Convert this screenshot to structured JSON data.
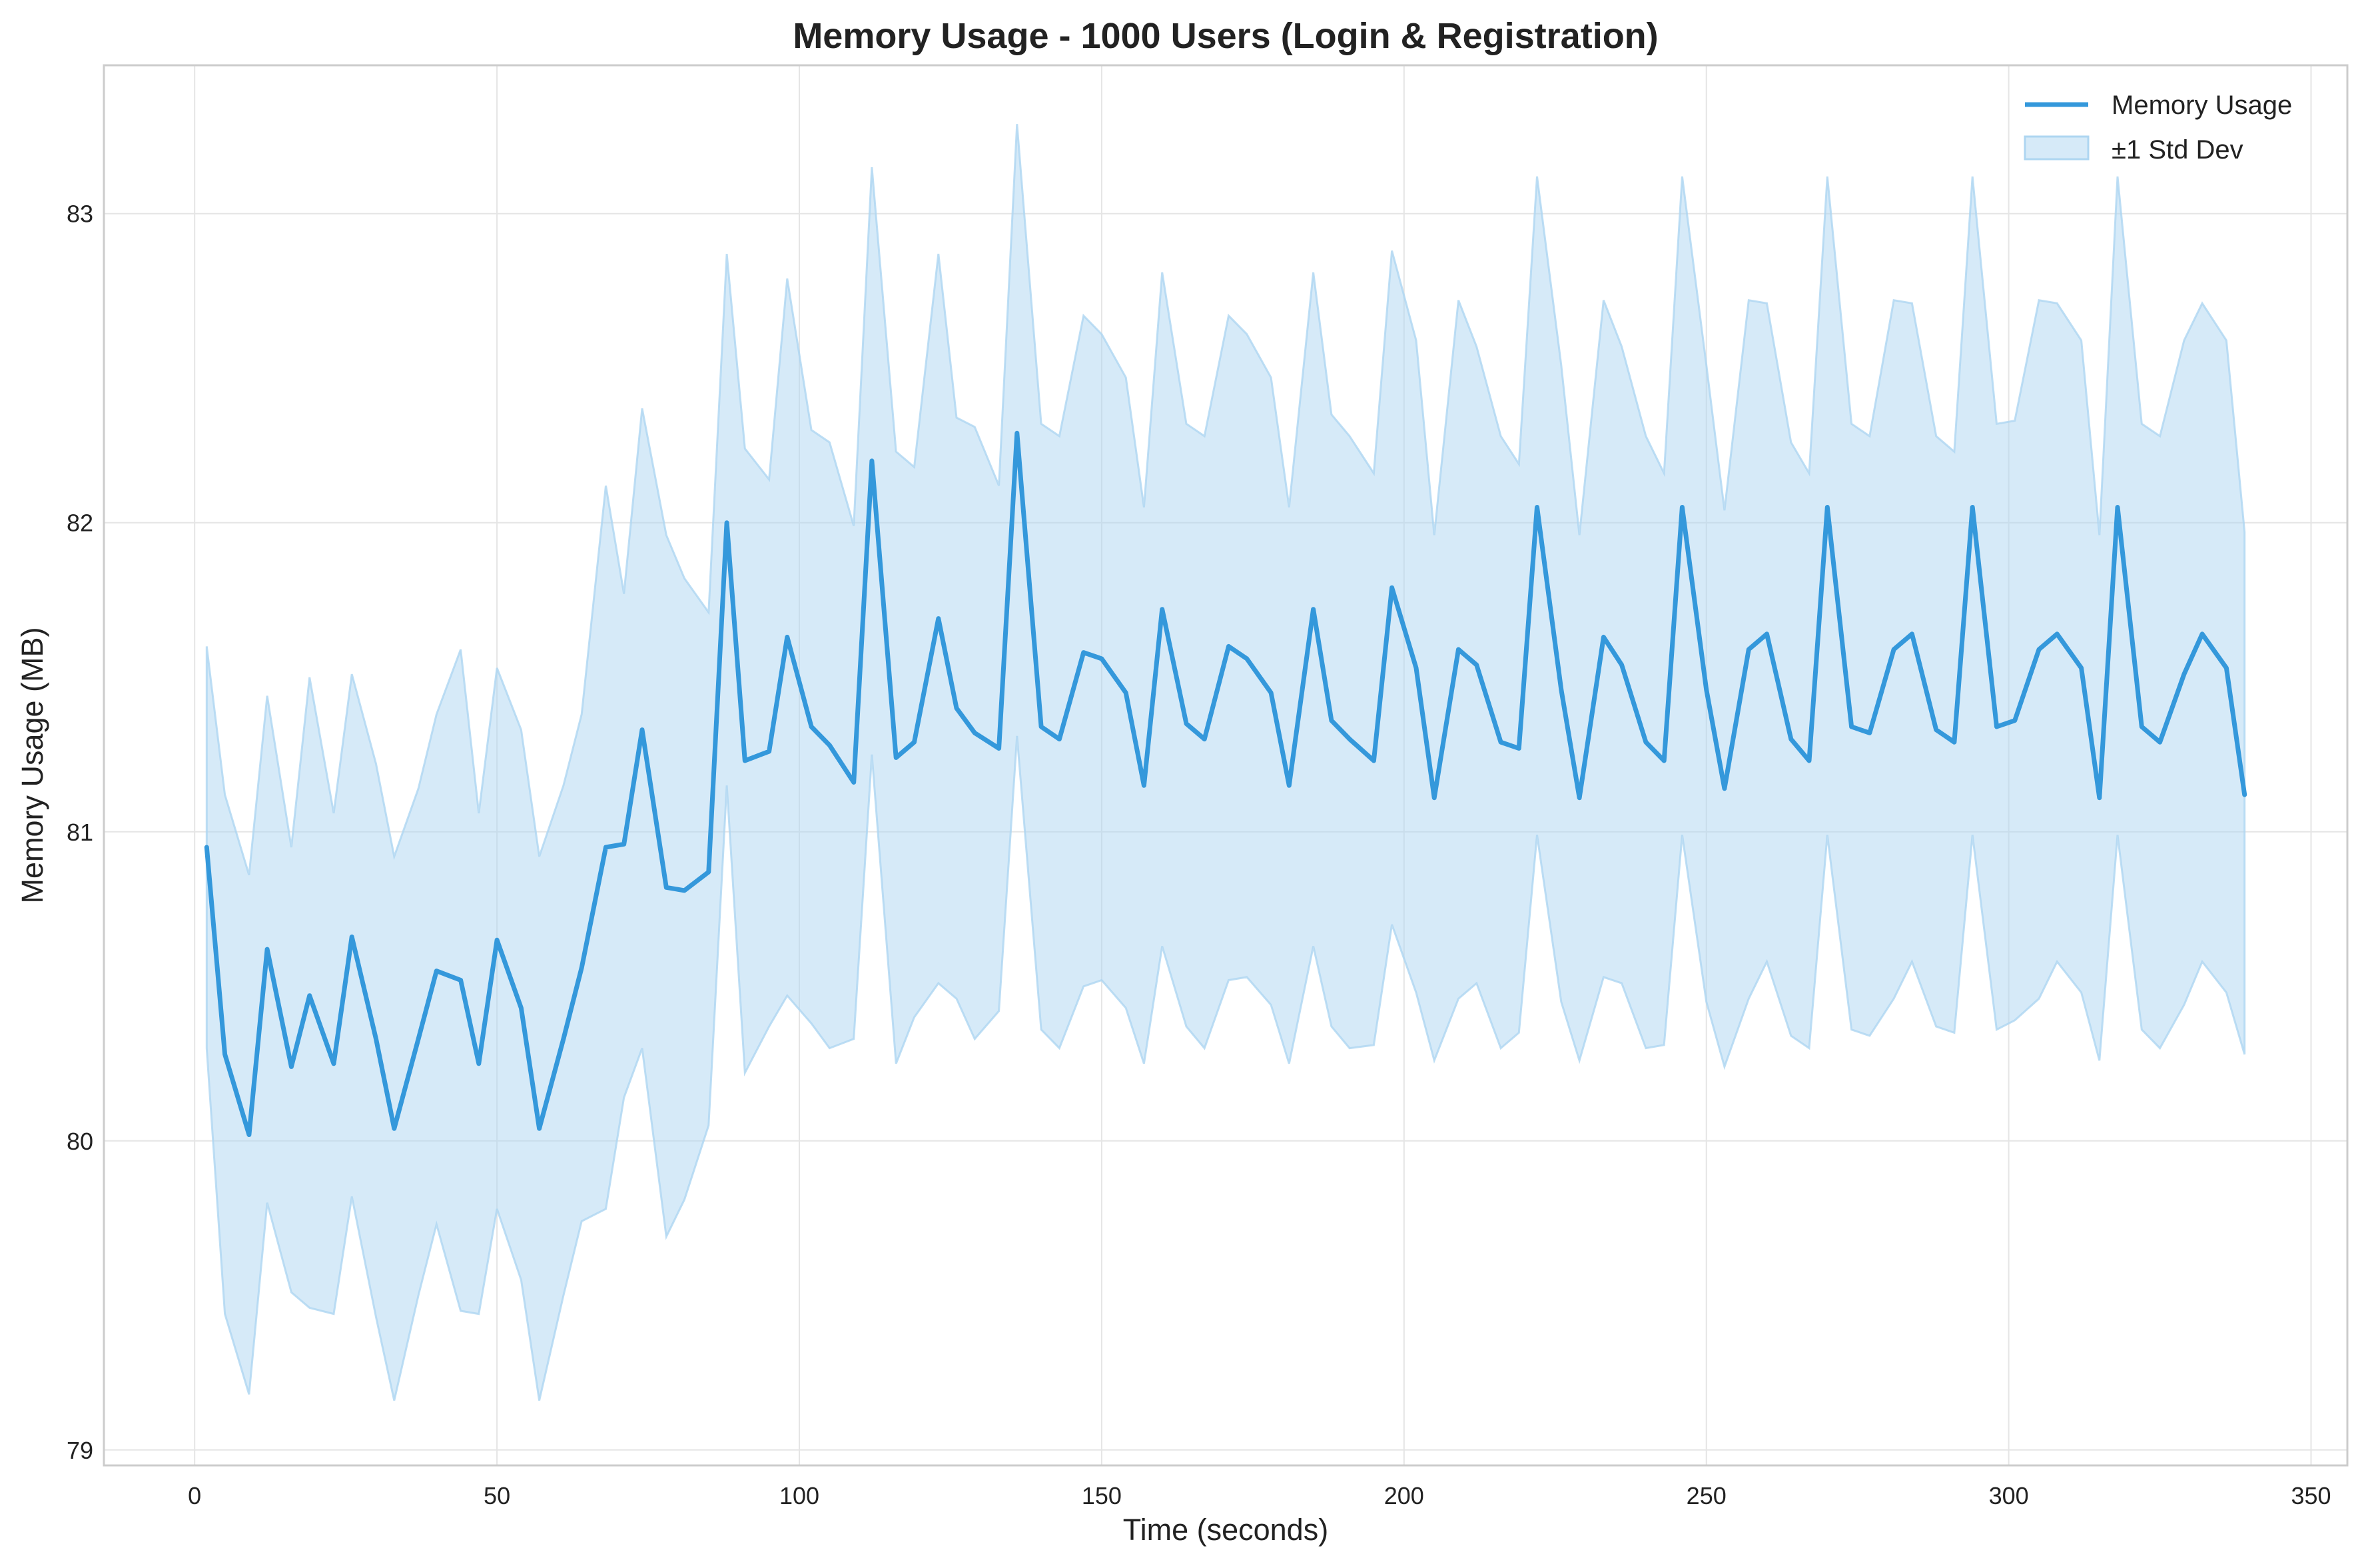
{
  "chart_data": {
    "type": "line",
    "title": "Memory Usage - 1000 Users (Login & Registration)",
    "xlabel": "Time (seconds)",
    "ylabel": "Memory Usage (MB)",
    "xlim": [
      -15,
      356
    ],
    "ylim": [
      78.95,
      83.48
    ],
    "xticks": [
      "0",
      "50",
      "100",
      "150",
      "200",
      "250",
      "300",
      "350"
    ],
    "yticks": [
      "79",
      "80",
      "81",
      "82",
      "83"
    ],
    "grid": true,
    "legend_position": "top-right",
    "colors": {
      "line": "#3498db",
      "band": "#aed6f1"
    },
    "series": [
      {
        "name": "Memory Usage",
        "legend_label": "Memory Usage",
        "x": [
          2,
          5,
          9,
          12,
          16,
          19,
          23,
          26,
          30,
          33,
          37,
          40,
          44,
          47,
          50,
          54,
          57,
          61,
          64,
          68,
          71,
          74,
          78,
          81,
          85,
          88,
          91,
          95,
          98,
          102,
          105,
          109,
          112,
          116,
          119,
          123,
          126,
          129,
          133,
          136,
          140,
          143,
          147,
          150,
          154,
          157,
          160,
          164,
          167,
          171,
          174,
          178,
          181,
          185,
          188,
          191,
          195,
          198,
          202,
          205,
          209,
          212,
          216,
          219,
          222,
          226,
          229,
          233,
          236,
          240,
          243,
          246,
          250,
          253,
          257,
          260,
          264,
          267,
          270,
          274,
          277,
          281,
          284,
          288,
          291,
          294,
          298,
          301,
          305,
          308,
          312,
          315,
          318,
          322,
          325,
          329,
          332,
          336,
          339
        ],
        "y": [
          80.95,
          80.28,
          80.02,
          80.62,
          80.24,
          80.47,
          80.25,
          80.66,
          80.33,
          80.04,
          80.33,
          80.55,
          80.52,
          80.25,
          80.65,
          80.43,
          80.04,
          80.33,
          80.56,
          80.95,
          80.96,
          81.33,
          80.82,
          80.81,
          80.87,
          82.0,
          81.23,
          81.26,
          81.63,
          81.34,
          81.28,
          81.16,
          82.2,
          81.24,
          81.29,
          81.69,
          81.4,
          81.32,
          81.27,
          82.29,
          81.34,
          81.3,
          81.58,
          81.56,
          81.45,
          81.15,
          81.72,
          81.35,
          81.3,
          81.6,
          81.56,
          81.45,
          81.15,
          81.72,
          81.36,
          81.3,
          81.23,
          81.79,
          81.53,
          81.11,
          81.59,
          81.54,
          81.29,
          81.27,
          82.05,
          81.46,
          81.11,
          81.63,
          81.54,
          81.29,
          81.23,
          82.05,
          81.46,
          81.14,
          81.59,
          81.64,
          81.3,
          81.23,
          82.05,
          81.34,
          81.32,
          81.59,
          81.64,
          81.33,
          81.29,
          82.05,
          81.34,
          81.36,
          81.59,
          81.64,
          81.53,
          81.11,
          82.05,
          81.34,
          81.29,
          81.51,
          81.64,
          81.53,
          81.12
        ]
      },
      {
        "name": "±1 Std Dev",
        "legend_label": "±1 Std Dev",
        "upper": [
          81.6,
          81.12,
          80.86,
          81.44,
          80.95,
          81.5,
          81.06,
          81.51,
          81.22,
          80.92,
          81.14,
          81.38,
          81.59,
          81.06,
          81.53,
          81.33,
          80.92,
          81.15,
          81.38,
          82.12,
          81.77,
          82.37,
          81.96,
          81.82,
          81.71,
          82.87,
          82.24,
          82.14,
          82.79,
          82.3,
          82.26,
          81.99,
          83.15,
          82.23,
          82.18,
          82.87,
          82.34,
          82.31,
          82.12,
          83.29,
          82.32,
          82.28,
          82.67,
          82.61,
          82.47,
          82.05,
          82.81,
          82.32,
          82.28,
          82.67,
          82.61,
          82.47,
          82.05,
          82.81,
          82.35,
          82.28,
          82.16,
          82.88,
          82.59,
          81.96,
          82.72,
          82.57,
          82.28,
          82.19,
          83.12,
          82.51,
          81.96,
          82.72,
          82.57,
          82.28,
          82.16,
          83.12,
          82.51,
          82.04,
          82.72,
          82.71,
          82.26,
          82.16,
          83.12,
          82.32,
          82.28,
          82.72,
          82.71,
          82.28,
          82.23,
          83.12,
          82.32,
          82.33,
          82.72,
          82.71,
          82.59,
          81.96,
          83.12,
          82.32,
          82.28,
          82.59,
          82.71,
          82.59,
          81.97
        ],
        "lower": [
          80.3,
          79.44,
          79.18,
          79.8,
          79.51,
          79.46,
          79.44,
          79.82,
          79.43,
          79.16,
          79.5,
          79.73,
          79.45,
          79.44,
          79.78,
          79.55,
          79.16,
          79.5,
          79.74,
          79.78,
          80.14,
          80.3,
          79.69,
          79.81,
          80.05,
          81.15,
          80.22,
          80.37,
          80.47,
          80.38,
          80.3,
          80.33,
          81.25,
          80.25,
          80.4,
          80.51,
          80.46,
          80.33,
          80.42,
          81.31,
          80.36,
          80.3,
          80.5,
          80.52,
          80.43,
          80.25,
          80.63,
          80.37,
          80.3,
          80.52,
          80.53,
          80.44,
          80.25,
          80.63,
          80.37,
          80.3,
          80.31,
          80.7,
          80.48,
          80.26,
          80.46,
          80.51,
          80.3,
          80.35,
          80.99,
          80.45,
          80.26,
          80.53,
          80.51,
          80.3,
          80.31,
          80.99,
          80.45,
          80.24,
          80.46,
          80.58,
          80.34,
          80.3,
          80.99,
          80.36,
          80.34,
          80.46,
          80.58,
          80.37,
          80.35,
          80.99,
          80.36,
          80.39,
          80.46,
          80.58,
          80.48,
          80.26,
          80.99,
          80.36,
          80.3,
          80.44,
          80.58,
          80.48,
          80.28
        ]
      }
    ]
  }
}
